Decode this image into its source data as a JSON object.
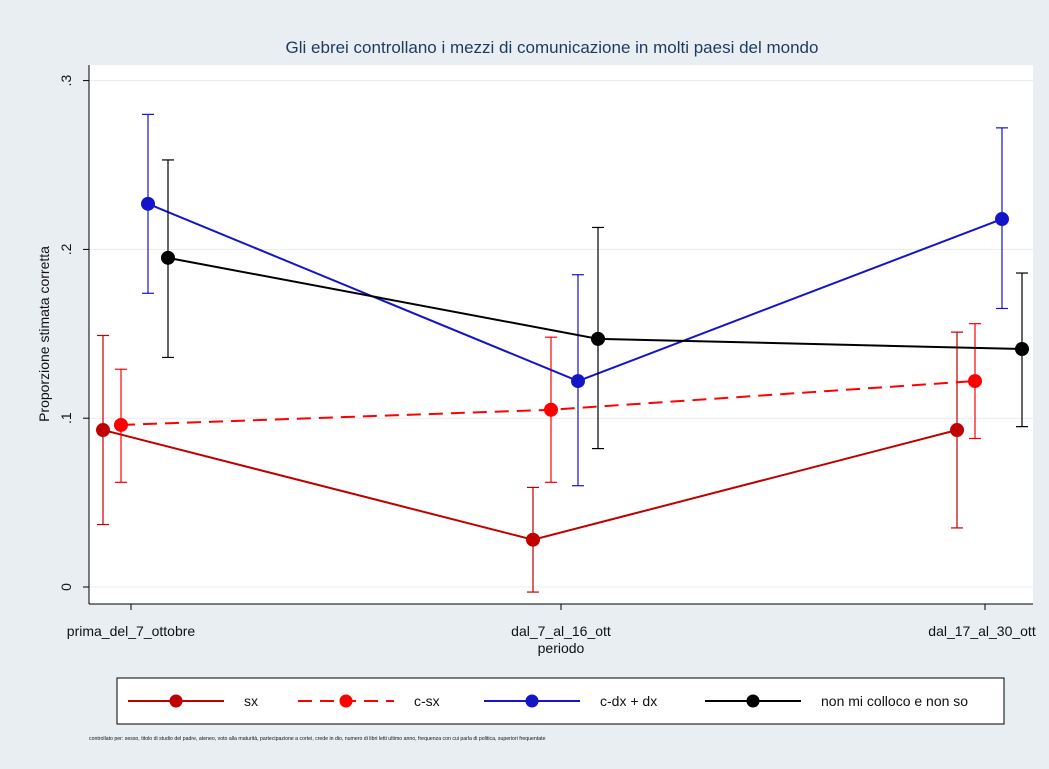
{
  "chart_data": {
    "type": "line",
    "title": "Gli ebrei controllano i mezzi di comunicazione in molti paesi del mondo",
    "xlabel": "periodo",
    "ylabel": "Proporzione stimata corretta",
    "categories": [
      "prima_del_7_ottobre",
      "dal_7_al_16_ott",
      "dal_17_al_30_ott"
    ],
    "ylim": [
      -0.02,
      0.305
    ],
    "yticks": [
      0,
      0.1,
      0.2,
      0.3
    ],
    "ytick_labels": [
      "0",
      ".1",
      ".2",
      ".3"
    ],
    "grid": true,
    "legend_position": "bottom",
    "series": [
      {
        "name": "sx",
        "color": "#c00000",
        "dash": "solid",
        "values": [
          0.093,
          0.028,
          0.093
        ],
        "ci_low": [
          0.037,
          -0.003,
          0.035
        ],
        "ci_high": [
          0.149,
          0.059,
          0.151
        ]
      },
      {
        "name": "c-sx",
        "color": "#ff0000",
        "dash": "dashed",
        "values": [
          0.096,
          0.105,
          0.122
        ],
        "ci_low": [
          0.062,
          0.062,
          0.088
        ],
        "ci_high": [
          0.129,
          0.148,
          0.156
        ]
      },
      {
        "name": "c-dx + dx",
        "color": "#1515c8",
        "dash": "solid",
        "values": [
          0.227,
          0.122,
          0.218
        ],
        "ci_low": [
          0.174,
          0.06,
          0.165
        ],
        "ci_high": [
          0.28,
          0.185,
          0.272
        ]
      },
      {
        "name": "non mi colloco e non so",
        "color": "#000000",
        "dash": "solid",
        "values": [
          0.195,
          0.147,
          0.141
        ],
        "ci_low": [
          0.136,
          0.082,
          0.095
        ],
        "ci_high": [
          0.253,
          0.213,
          0.186
        ]
      }
    ],
    "note": "controllato per: sesso, titolo di studio del padre, ateneo, voto alla maturità, partecipazione a cortei, crede in dio, numero di libri letti ultimo anno, frequenza con cui parla di politica, superiori frequentate"
  }
}
